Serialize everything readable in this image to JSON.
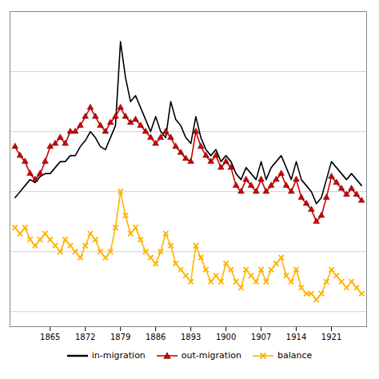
{
  "chart_data": {
    "type": "line",
    "x": [
      1858,
      1859,
      1860,
      1861,
      1862,
      1863,
      1864,
      1865,
      1866,
      1867,
      1868,
      1869,
      1870,
      1871,
      1872,
      1873,
      1874,
      1875,
      1876,
      1877,
      1878,
      1879,
      1880,
      1881,
      1882,
      1883,
      1884,
      1885,
      1886,
      1887,
      1888,
      1889,
      1890,
      1891,
      1892,
      1893,
      1894,
      1895,
      1896,
      1897,
      1898,
      1899,
      1900,
      1901,
      1902,
      1903,
      1904,
      1905,
      1906,
      1907,
      1908,
      1909,
      1910,
      1911,
      1912,
      1913,
      1914,
      1915,
      1916,
      1917,
      1918,
      1919,
      1920,
      1921,
      1922,
      1923,
      1924,
      1925,
      1926,
      1927
    ],
    "series": [
      {
        "name": "in-migration",
        "color": "#000000",
        "values": [
          38,
          40,
          42,
          44,
          43,
          45,
          46,
          46,
          48,
          50,
          50,
          52,
          52,
          55,
          57,
          60,
          58,
          55,
          54,
          58,
          62,
          90,
          78,
          70,
          72,
          68,
          64,
          60,
          65,
          60,
          58,
          70,
          64,
          62,
          58,
          56,
          65,
          58,
          54,
          52,
          54,
          50,
          52,
          50,
          46,
          44,
          48,
          46,
          44,
          50,
          44,
          48,
          50,
          52,
          48,
          44,
          50,
          44,
          42,
          40,
          36,
          38,
          44,
          50,
          48,
          46,
          44,
          46,
          44,
          42
        ]
      },
      {
        "name": "out-migration",
        "color": "#cc0000",
        "marker": "triangle",
        "values": [
          55,
          52,
          50,
          46,
          44,
          46,
          50,
          55,
          56,
          58,
          56,
          60,
          60,
          62,
          65,
          68,
          65,
          62,
          60,
          63,
          65,
          68,
          65,
          63,
          64,
          62,
          60,
          58,
          56,
          58,
          60,
          58,
          55,
          53,
          51,
          50,
          60,
          55,
          52,
          50,
          52,
          48,
          50,
          48,
          42,
          40,
          44,
          42,
          40,
          44,
          40,
          42,
          44,
          46,
          42,
          40,
          44,
          38,
          36,
          34,
          30,
          32,
          38,
          45,
          43,
          41,
          39,
          41,
          39,
          37
        ]
      },
      {
        "name": "balance",
        "color": "#FFB300",
        "marker": "x",
        "values": [
          28,
          26,
          28,
          24,
          22,
          24,
          26,
          24,
          22,
          20,
          24,
          22,
          20,
          18,
          22,
          26,
          24,
          20,
          18,
          20,
          28,
          40,
          32,
          26,
          28,
          24,
          20,
          18,
          16,
          20,
          26,
          22,
          16,
          14,
          12,
          10,
          22,
          18,
          14,
          10,
          12,
          10,
          16,
          14,
          10,
          8,
          14,
          12,
          10,
          14,
          10,
          14,
          16,
          18,
          12,
          10,
          14,
          8,
          6,
          6,
          4,
          6,
          10,
          14,
          12,
          10,
          8,
          10,
          8,
          6
        ]
      }
    ],
    "xlim": [
      1857,
      1928
    ],
    "xticks": [
      1865,
      1872,
      1879,
      1886,
      1893,
      1900,
      1907,
      1914,
      1921
    ],
    "ylim": [
      -5,
      100
    ],
    "yticks": [
      0,
      20,
      40,
      60,
      80,
      100
    ],
    "grid": true,
    "tick_labels": "x",
    "legend": "bottom"
  }
}
